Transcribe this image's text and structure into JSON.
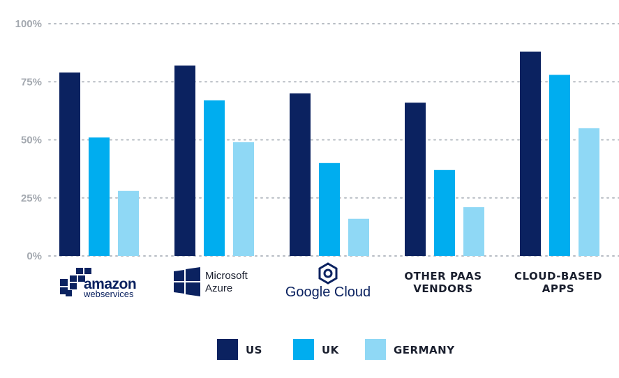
{
  "chart_data": {
    "type": "bar",
    "categories": [
      "amazon web services",
      "Microsoft Azure",
      "Google Cloud",
      "OTHER PAAS VENDORS",
      "CLOUD-BASED APPS"
    ],
    "series": [
      {
        "name": "US",
        "color": "#0b2260",
        "values": [
          79,
          82,
          70,
          66,
          88
        ]
      },
      {
        "name": "UK",
        "color": "#00adef",
        "values": [
          51,
          67,
          40,
          37,
          78
        ]
      },
      {
        "name": "GERMANY",
        "color": "#8fd8f5",
        "values": [
          28,
          49,
          16,
          21,
          55
        ]
      }
    ],
    "ylim": [
      0,
      100
    ],
    "yticks": [
      {
        "value": 0,
        "label": "0%"
      },
      {
        "value": 25,
        "label": "25%"
      },
      {
        "value": 50,
        "label": "50%"
      },
      {
        "value": 75,
        "label": "75%"
      },
      {
        "value": 100,
        "label": "100%"
      }
    ],
    "grid": true,
    "legend_position": "bottom-center"
  },
  "logos": {
    "amazon": {
      "word": "amazon",
      "sub": "webservices"
    },
    "azure": {
      "line1": "Microsoft",
      "line2": "Azure"
    },
    "google": {
      "text": "Google Cloud"
    }
  },
  "text_categories": {
    "other": [
      "OTHER PAAS",
      "VENDORS"
    ],
    "cloud": [
      "CLOUD-BASED",
      "APPS"
    ]
  },
  "colors": {
    "grid": "#b7bcc3",
    "tick": "#a4a9b0",
    "text": "#1a1f2e"
  }
}
